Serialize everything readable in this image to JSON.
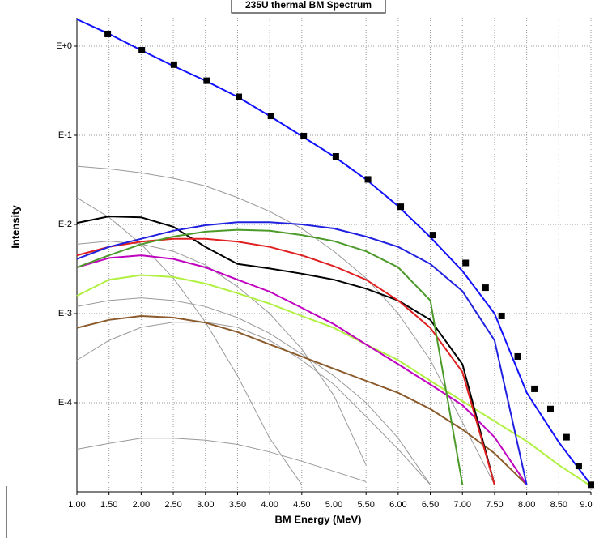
{
  "chart_data": {
    "type": "line",
    "title": "235U thermal BM Spectrum",
    "x_label": "BM Energy (MeV)",
    "y_label": "Intensity",
    "log_y": true,
    "grid": true,
    "xlim": [
      1,
      9
    ],
    "ylim": [
      1e-05,
      2.08
    ],
    "xticks": [
      {
        "value": 1,
        "label": "1.00"
      },
      {
        "value": 1.5,
        "label": "1.50"
      },
      {
        "value": 2,
        "label": "2.00"
      },
      {
        "value": 2.5,
        "label": "2.50"
      },
      {
        "value": 3,
        "label": "3.00"
      },
      {
        "value": 3.5,
        "label": "3.50"
      },
      {
        "value": 4,
        "label": "4.00"
      },
      {
        "value": 4.5,
        "label": "4.50"
      },
      {
        "value": 5,
        "label": "5.00"
      },
      {
        "value": 5.5,
        "label": "5.50"
      },
      {
        "value": 6,
        "label": "6.00"
      },
      {
        "value": 6.5,
        "label": "6.50"
      },
      {
        "value": 7,
        "label": "7.00"
      },
      {
        "value": 7.5,
        "label": "7.50"
      },
      {
        "value": 8,
        "label": "8.00"
      },
      {
        "value": 8.5,
        "label": "8.50"
      },
      {
        "value": 9,
        "label": "9.0"
      }
    ],
    "yticks": [
      {
        "value": 1,
        "label": "E+0"
      },
      {
        "value": 0.1,
        "label": "E-1"
      },
      {
        "value": 0.01,
        "label": "E-2"
      },
      {
        "value": 0.001,
        "label": "E-3"
      },
      {
        "value": 0.0001,
        "label": "E-4"
      }
    ],
    "x": [
      1,
      1.5,
      2,
      2.5,
      3,
      3.5,
      4,
      4.5,
      5,
      5.5,
      6,
      6.5,
      7,
      7.5,
      8,
      8.5,
      9
    ],
    "series": [
      {
        "color": "#999999",
        "values": [
          0.045,
          0.042,
          0.038,
          0.033,
          0.027,
          0.02,
          0.014,
          0.009,
          0.005,
          0.0025,
          0.001,
          0.0003,
          6e-05,
          1.2e-05,
          null,
          null,
          null
        ]
      },
      {
        "color": "#999999",
        "values": [
          0.006,
          0.0065,
          0.006,
          0.005,
          0.0035,
          0.002,
          0.001,
          0.0004,
          0.00012,
          2e-05,
          null,
          null,
          null,
          null,
          null,
          null,
          null
        ]
      },
      {
        "color": "#999999",
        "values": [
          0.0012,
          0.0014,
          0.0015,
          0.0014,
          0.0012,
          0.0009,
          0.0006,
          0.00035,
          0.0002,
          0.0001,
          4e-05,
          1.2e-05,
          null,
          null,
          null,
          null,
          null
        ]
      },
      {
        "color": "#999999",
        "values": [
          3e-05,
          3.5e-05,
          4e-05,
          4e-05,
          3.8e-05,
          3.4e-05,
          2.8e-05,
          2.2e-05,
          1.7e-05,
          1.3e-05,
          null,
          null,
          null,
          null,
          null,
          null,
          null
        ]
      },
      {
        "color": "#999999",
        "values": [
          0.02,
          0.012,
          0.006,
          0.0025,
          0.0008,
          0.0002,
          4e-05,
          1.2e-05,
          null,
          null,
          null,
          null,
          null,
          null,
          null,
          null,
          null
        ]
      },
      {
        "color": "#999999",
        "values": [
          0.0003,
          0.0005,
          0.0007,
          0.0008,
          0.0008,
          0.0007,
          0.0005,
          0.0003,
          0.00016,
          7e-05,
          3e-05,
          1.2e-05,
          null,
          null,
          null,
          null,
          null
        ]
      },
      {
        "color": "#b0f040",
        "values": [
          0.00158,
          0.0024,
          0.0027,
          0.00257,
          0.00217,
          0.00169,
          0.00129,
          0.00094,
          0.00069,
          0.00045,
          0.0003,
          0.000176,
          0.000104,
          6.2e-05,
          3.7e-05,
          2e-05,
          1.16e-05
        ]
      },
      {
        "color": "#8b5a2b",
        "values": [
          0.00069,
          0.00085,
          0.00094,
          0.0009,
          0.00079,
          0.00062,
          0.00045,
          0.00033,
          0.00024,
          0.000176,
          0.000129,
          8.5e-05,
          5e-05,
          2.7e-05,
          1.2e-05,
          null,
          null
        ]
      },
      {
        "color": "#c000c0",
        "values": [
          0.0033,
          0.0042,
          0.0045,
          0.0041,
          0.0033,
          0.0024,
          0.00176,
          0.00116,
          0.00076,
          0.00045,
          0.00027,
          0.00016,
          9.4e-05,
          4.1e-05,
          1.2e-05,
          null,
          null
        ]
      },
      {
        "color": "#000000",
        "values": [
          0.0104,
          0.0123,
          0.012,
          0.0094,
          0.0056,
          0.0036,
          0.0032,
          0.0028,
          0.0024,
          0.0019,
          0.0014,
          0.00085,
          0.00027,
          1.2e-05,
          null,
          null,
          null
        ]
      },
      {
        "color": "#e02020",
        "values": [
          0.0045,
          0.0056,
          0.0064,
          0.0069,
          0.0069,
          0.0064,
          0.0056,
          0.0045,
          0.0034,
          0.0024,
          0.0014,
          0.00069,
          0.00022,
          1.2e-05,
          null,
          null,
          null
        ]
      },
      {
        "color": "#4c9a2a",
        "values": [
          0.0033,
          0.0045,
          0.006,
          0.0073,
          0.0083,
          0.0087,
          0.0085,
          0.0076,
          0.0065,
          0.005,
          0.0033,
          0.0014,
          1.2e-05,
          null,
          null,
          null,
          null
        ]
      },
      {
        "color": "#2020e0",
        "values": [
          0.0041,
          0.0056,
          0.0069,
          0.0085,
          0.0098,
          0.0106,
          0.0106,
          0.01,
          0.009,
          0.0073,
          0.0056,
          0.0036,
          0.00178,
          0.0005,
          1.2e-05,
          null,
          null
        ]
      },
      {
        "color": "#1010ff",
        "values": [
          2.0,
          1.37,
          0.9,
          0.6,
          0.41,
          0.27,
          0.165,
          0.098,
          0.058,
          0.032,
          0.016,
          0.0072,
          0.003,
          0.001,
          0.00013,
          3.6e-05,
          1.2e-05
        ]
      },
      {
        "color": "#000000",
        "marker": "square",
        "x": [
          1.48,
          2.01,
          2.51,
          3.02,
          3.52,
          4.02,
          4.53,
          5.03,
          5.53,
          6.04,
          6.54,
          7.05,
          7.36,
          7.61,
          7.86,
          8.12,
          8.37,
          8.62,
          8.81,
          9.0
        ],
        "values": [
          1.37,
          0.9,
          0.62,
          0.41,
          0.27,
          0.165,
          0.098,
          0.058,
          0.032,
          0.0158,
          0.0076,
          0.0037,
          0.00195,
          0.00094,
          0.00033,
          0.000143,
          8.5e-05,
          4.1e-05,
          1.95e-05,
          1.2e-05
        ]
      }
    ]
  }
}
